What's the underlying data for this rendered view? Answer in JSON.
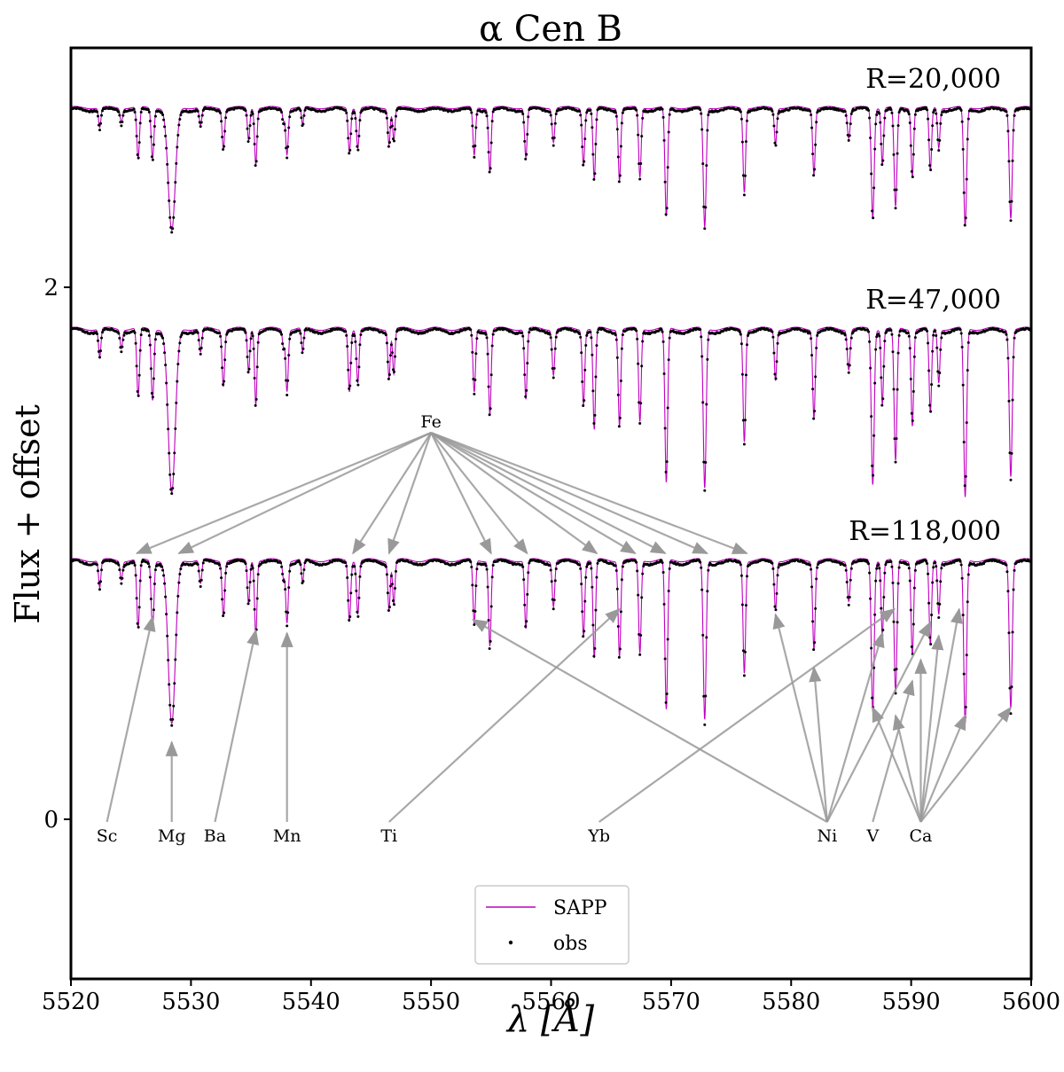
{
  "chart_data": {
    "type": "line",
    "title": "α Cen B",
    "xlabel": "λ [Å]",
    "ylabel": "Flux + offset",
    "xlim": [
      5520,
      5600
    ],
    "ylim": [
      -0.6,
      2.9
    ],
    "x_ticks": [
      5520,
      5530,
      5540,
      5550,
      5560,
      5570,
      5580,
      5590,
      5600
    ],
    "y_ticks": [
      0,
      2
    ],
    "grid": false,
    "legend": {
      "placement": "lower-center",
      "entries": [
        "SAPP",
        "obs"
      ]
    },
    "series": [
      {
        "name": "SAPP",
        "style": "line",
        "color": "#c000c0"
      },
      {
        "name": "obs",
        "style": "points",
        "color": "#000000"
      }
    ],
    "panels": [
      {
        "label": "R=20,000",
        "offset": 1.8,
        "continuum": 2.68,
        "scale": 0.75,
        "model_extra": 0.0,
        "obs_extra": 0.0
      },
      {
        "label": "R=47,000",
        "offset": 0.9,
        "continuum": 1.85,
        "scale": 1.0,
        "model_extra": 0.06,
        "obs_extra": 0.0
      },
      {
        "label": "R=118,000",
        "offset": 0.0,
        "continuum": 0.98,
        "scale": 1.0,
        "model_extra": 0.03,
        "obs_extra": 0.02
      }
    ],
    "lines": [
      {
        "x": 5522.4,
        "d": 0.1,
        "w": 0.14
      },
      {
        "x": 5524.2,
        "d": 0.07,
        "w": 0.14
      },
      {
        "x": 5525.6,
        "d": 0.26,
        "w": 0.16
      },
      {
        "x": 5526.8,
        "d": 0.25,
        "w": 0.16
      },
      {
        "x": 5528.4,
        "d": 0.62,
        "w": 0.42
      },
      {
        "x": 5530.8,
        "d": 0.09,
        "w": 0.15
      },
      {
        "x": 5532.7,
        "d": 0.2,
        "w": 0.15
      },
      {
        "x": 5534.8,
        "d": 0.16,
        "w": 0.14
      },
      {
        "x": 5535.4,
        "d": 0.28,
        "w": 0.14
      },
      {
        "x": 5537.7,
        "d": 0.06,
        "w": 0.12
      },
      {
        "x": 5538.0,
        "d": 0.23,
        "w": 0.15
      },
      {
        "x": 5539.3,
        "d": 0.09,
        "w": 0.13
      },
      {
        "x": 5543.2,
        "d": 0.22,
        "w": 0.15
      },
      {
        "x": 5543.9,
        "d": 0.2,
        "w": 0.15
      },
      {
        "x": 5546.5,
        "d": 0.18,
        "w": 0.14
      },
      {
        "x": 5546.9,
        "d": 0.16,
        "w": 0.14
      },
      {
        "x": 5553.6,
        "d": 0.24,
        "w": 0.15
      },
      {
        "x": 5554.9,
        "d": 0.32,
        "w": 0.15
      },
      {
        "x": 5557.9,
        "d": 0.25,
        "w": 0.15
      },
      {
        "x": 5560.2,
        "d": 0.17,
        "w": 0.15
      },
      {
        "x": 5562.7,
        "d": 0.28,
        "w": 0.15
      },
      {
        "x": 5563.6,
        "d": 0.36,
        "w": 0.15
      },
      {
        "x": 5565.7,
        "d": 0.36,
        "w": 0.15
      },
      {
        "x": 5567.4,
        "d": 0.35,
        "w": 0.15
      },
      {
        "x": 5569.6,
        "d": 0.55,
        "w": 0.16
      },
      {
        "x": 5572.8,
        "d": 0.6,
        "w": 0.17
      },
      {
        "x": 5576.1,
        "d": 0.42,
        "w": 0.15
      },
      {
        "x": 5578.7,
        "d": 0.18,
        "w": 0.14
      },
      {
        "x": 5581.9,
        "d": 0.33,
        "w": 0.15
      },
      {
        "x": 5584.8,
        "d": 0.15,
        "w": 0.16
      },
      {
        "x": 5586.8,
        "d": 0.55,
        "w": 0.17
      },
      {
        "x": 5587.6,
        "d": 0.28,
        "w": 0.14
      },
      {
        "x": 5588.7,
        "d": 0.5,
        "w": 0.17
      },
      {
        "x": 5590.1,
        "d": 0.34,
        "w": 0.15
      },
      {
        "x": 5591.6,
        "d": 0.32,
        "w": 0.15
      },
      {
        "x": 5592.3,
        "d": 0.2,
        "w": 0.14
      },
      {
        "x": 5594.5,
        "d": 0.6,
        "w": 0.17
      },
      {
        "x": 5598.3,
        "d": 0.55,
        "w": 0.17
      }
    ],
    "annotations": [
      {
        "text": "Fe",
        "at": [
          5550.0,
          1.5
        ],
        "targets": [
          [
            5525.5,
            1.0
          ],
          [
            5529.0,
            1.0
          ],
          [
            5543.5,
            1.0
          ],
          [
            5546.5,
            1.0
          ],
          [
            5555.0,
            1.0
          ],
          [
            5558.0,
            1.0
          ],
          [
            5563.8,
            1.0
          ],
          [
            5567.0,
            1.0
          ],
          [
            5569.5,
            1.0
          ],
          [
            5573.0,
            1.0
          ],
          [
            5576.3,
            1.0
          ]
        ]
      },
      {
        "text": "Sc",
        "at": [
          5523.0,
          0.0
        ],
        "targets": [
          [
            5526.8,
            0.76
          ]
        ]
      },
      {
        "text": "Mg",
        "at": [
          5528.4,
          0.0
        ],
        "targets": [
          [
            5528.4,
            0.29
          ]
        ]
      },
      {
        "text": "Ba",
        "at": [
          5532.0,
          0.0
        ],
        "targets": [
          [
            5535.4,
            0.71
          ]
        ]
      },
      {
        "text": "Mn",
        "at": [
          5538.0,
          0.0
        ],
        "targets": [
          [
            5538.0,
            0.7
          ]
        ]
      },
      {
        "text": "Ti",
        "at": [
          5546.5,
          0.0
        ],
        "targets": [
          [
            5565.7,
            0.79
          ]
        ]
      },
      {
        "text": "Yb",
        "at": [
          5564.0,
          0.0
        ],
        "targets": [
          [
            5588.6,
            0.79
          ]
        ]
      },
      {
        "text": "Ni",
        "at": [
          5583.0,
          0.0
        ],
        "targets": [
          [
            5553.5,
            0.75
          ],
          [
            5578.7,
            0.77
          ],
          [
            5581.9,
            0.57
          ],
          [
            5587.6,
            0.7
          ],
          [
            5591.6,
            0.74
          ]
        ]
      },
      {
        "text": "V",
        "at": [
          5586.8,
          0.0
        ],
        "targets": [
          [
            5590.1,
            0.52
          ]
        ]
      },
      {
        "text": "Ca",
        "at": [
          5590.8,
          0.0
        ],
        "targets": [
          [
            5586.8,
            0.42
          ],
          [
            5588.7,
            0.39
          ],
          [
            5590.8,
            0.6
          ],
          [
            5592.3,
            0.69
          ],
          [
            5594.5,
            0.39
          ],
          [
            5598.3,
            0.42
          ],
          [
            5594.0,
            0.79
          ]
        ]
      }
    ]
  }
}
